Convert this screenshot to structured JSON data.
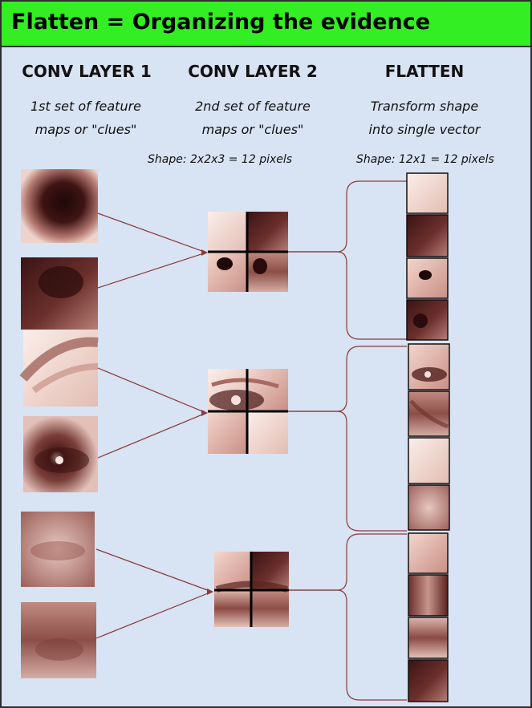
{
  "title": "Flatten = Organizing the evidence",
  "columns": [
    {
      "heading": "CONV LAYER 1",
      "subtitle": [
        "1st set of feature",
        "maps or \"clues\""
      ]
    },
    {
      "heading": "CONV LAYER 2",
      "subtitle": [
        "2nd set of feature",
        "maps or \"clues\""
      ]
    },
    {
      "heading": "FLATTEN",
      "subtitle": [
        "Transform shape",
        "into single vector"
      ]
    }
  ],
  "shape_notes": {
    "conv2": "Shape: 2x2x3 = 12 pixels",
    "flatten": "Shape: 12x1 = 12 pixels"
  },
  "colors": {
    "title_bar": "#33ee22",
    "panel_bg": "#d8e3f3",
    "connector": "#8a3a3a",
    "grid_line": "#000000"
  },
  "feature_groups": [
    {
      "name": "nose",
      "conv1_maps": [
        "nose-tip",
        "nostril"
      ],
      "flatten_cells": 4
    },
    {
      "name": "eye",
      "conv1_maps": [
        "eyebrow",
        "eye"
      ],
      "flatten_cells": 4
    },
    {
      "name": "mouth",
      "conv1_maps": [
        "upper-lip",
        "lower-lip"
      ],
      "flatten_cells": 4
    }
  ]
}
